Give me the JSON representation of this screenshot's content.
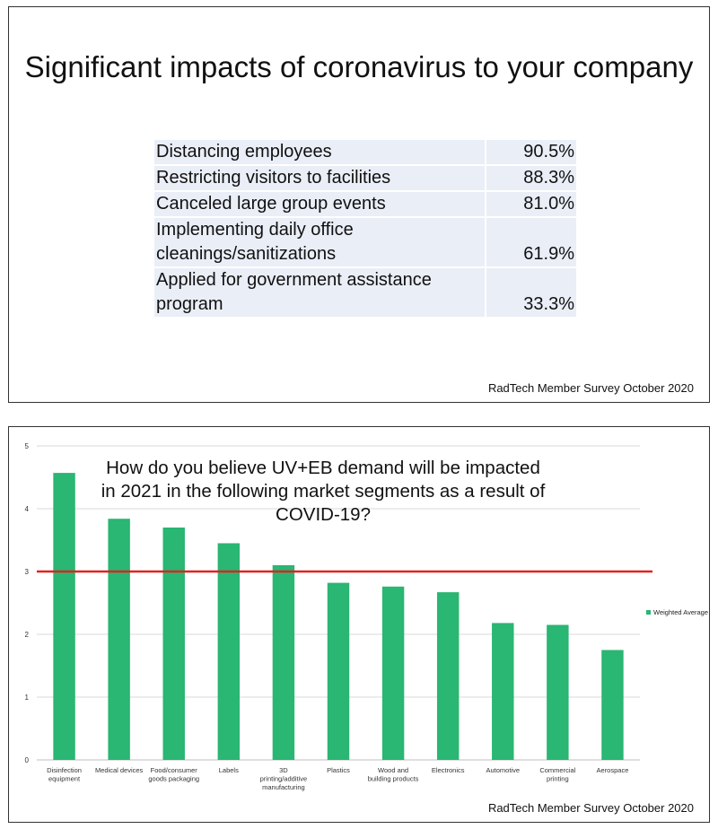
{
  "slide1": {
    "title": "Significant impacts of coronavirus to your company",
    "rows": [
      {
        "label": "Distancing employees",
        "value": "90.5%"
      },
      {
        "label": "Restricting visitors to facilities",
        "value": "88.3%"
      },
      {
        "label": "Canceled large group events",
        "value": "81.0%"
      },
      {
        "label": "Implementing daily office cleanings/sanitizations",
        "value": "61.9%"
      },
      {
        "label": "Applied for government assistance program",
        "value": "33.3%"
      }
    ],
    "source": "RadTech Member Survey October 2020"
  },
  "slide2": {
    "source": "RadTech Member Survey October 2020"
  },
  "chart_data": {
    "type": "bar",
    "title": "How do you believe UV+EB demand will be impacted in 2021 in the following market segments as a result of COVID-19?",
    "categories": [
      "Disinfection equipment",
      "Medical devices",
      "Food/consumer goods packaging",
      "Labels",
      "3D printing/additive manufacturing",
      "Plastics",
      "Wood and building products",
      "Electronics",
      "Automotive",
      "Commercial printing",
      "Aerospace"
    ],
    "series": [
      {
        "name": "Weighted Average",
        "color": "#2ab673",
        "values": [
          4.57,
          3.84,
          3.7,
          3.45,
          3.1,
          2.82,
          2.76,
          2.67,
          2.18,
          2.15,
          1.75
        ]
      }
    ],
    "reference_line": {
      "value": 3,
      "color": "#e0231f"
    },
    "ylim": [
      0,
      5
    ],
    "yticks": [
      "0",
      "1",
      "2",
      "3",
      "4",
      "5"
    ],
    "grid": true,
    "legend": "right"
  }
}
